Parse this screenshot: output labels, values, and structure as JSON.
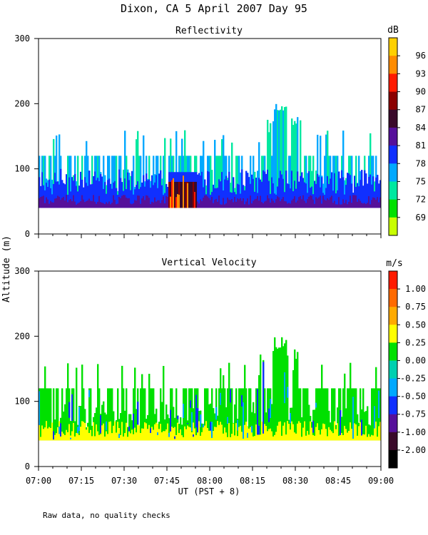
{
  "title": "Dixon, CA  5 April 2007  Day  95",
  "footnote": "Raw data, no quality checks",
  "shared_ylabel": "Altitude (m)",
  "xlabel": "UT  (PST + 8)",
  "x_ticks": [
    "07:00",
    "07:15",
    "07:30",
    "07:45",
    "08:00",
    "08:15",
    "08:30",
    "08:45",
    "09:00"
  ],
  "chart_data": [
    {
      "type": "heatmap",
      "title": "Reflectivity",
      "x_range": [
        "07:00",
        "09:00"
      ],
      "ylim": [
        0,
        300
      ],
      "y_ticks": [
        0,
        100,
        200,
        300
      ],
      "colorbar": {
        "unit": "dB",
        "labels": [
          "96",
          "93",
          "90",
          "87",
          "84",
          "81",
          "78",
          "75",
          "72",
          "69"
        ],
        "colors": [
          "#ffd000",
          "#ff8c00",
          "#ff1a00",
          "#8b0000",
          "#3a0a2a",
          "#55109a",
          "#1030ff",
          "#00a8ff",
          "#00e8a0",
          "#00e000",
          "#c8ff00"
        ]
      },
      "description_data": {
        "lowest_gate_m": 40,
        "typical_top_m": 120,
        "max_top_m": 200,
        "max_top_time": "08:22",
        "high_reflectivity_episode": [
          "07:45",
          "07:55"
        ]
      }
    },
    {
      "type": "heatmap",
      "title": "Vertical Velocity",
      "x_range": [
        "07:00",
        "09:00"
      ],
      "ylim": [
        0,
        300
      ],
      "y_ticks": [
        0,
        100,
        200,
        300
      ],
      "colorbar": {
        "unit": "m/s",
        "labels": [
          "1.00",
          "0.75",
          "0.50",
          "0.25",
          "0.00",
          "-0.25",
          "-0.50",
          "-0.75",
          "-1.00",
          "-2.00"
        ],
        "colors": [
          "#ff1a00",
          "#ff6a00",
          "#ffaa00",
          "#ffff00",
          "#00e000",
          "#00d0b0",
          "#00a8ff",
          "#1030ff",
          "#55109a",
          "#3a0a2a",
          "#000000"
        ]
      },
      "description_data": {
        "lowest_gate_m": 40,
        "typical_top_m": 120,
        "max_top_m": 200,
        "max_top_time": "08:22"
      }
    }
  ]
}
